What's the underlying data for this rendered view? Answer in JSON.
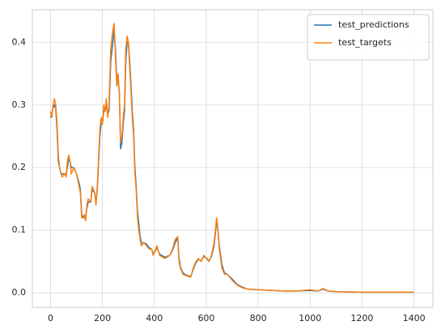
{
  "chart_data": {
    "type": "line",
    "x": [
      0,
      5,
      10,
      15,
      20,
      25,
      30,
      35,
      40,
      45,
      55,
      60,
      65,
      70,
      75,
      80,
      90,
      100,
      110,
      115,
      120,
      125,
      130,
      135,
      140,
      145,
      155,
      160,
      170,
      175,
      180,
      190,
      195,
      200,
      205,
      210,
      215,
      220,
      225,
      232,
      240,
      245,
      250,
      255,
      260,
      265,
      270,
      275,
      280,
      285,
      290,
      295,
      300,
      305,
      310,
      315,
      320,
      325,
      330,
      335,
      340,
      345,
      350,
      360,
      370,
      380,
      390,
      395,
      400,
      410,
      420,
      440,
      460,
      470,
      480,
      490,
      495,
      500,
      510,
      520,
      540,
      550,
      560,
      570,
      580,
      590,
      600,
      610,
      620,
      630,
      640,
      645,
      650,
      660,
      670,
      680,
      700,
      720,
      740,
      760,
      800,
      850,
      900,
      950,
      1000,
      1030,
      1050,
      1070,
      1100,
      1200,
      1300,
      1400
    ],
    "series": [
      {
        "name": "test_predictions",
        "color": "#1f77b4",
        "values": [
          0.28,
          0.285,
          0.295,
          0.3,
          0.295,
          0.26,
          0.21,
          0.2,
          0.19,
          0.19,
          0.19,
          0.19,
          0.2,
          0.215,
          0.21,
          0.2,
          0.2,
          0.19,
          0.175,
          0.165,
          0.125,
          0.12,
          0.12,
          0.12,
          0.135,
          0.145,
          0.145,
          0.165,
          0.16,
          0.145,
          0.165,
          0.25,
          0.27,
          0.27,
          0.29,
          0.29,
          0.3,
          0.285,
          0.29,
          0.37,
          0.4,
          0.42,
          0.39,
          0.34,
          0.34,
          0.32,
          0.23,
          0.24,
          0.27,
          0.29,
          0.37,
          0.4,
          0.4,
          0.37,
          0.33,
          0.29,
          0.26,
          0.2,
          0.17,
          0.13,
          0.11,
          0.09,
          0.08,
          0.08,
          0.078,
          0.072,
          0.07,
          0.063,
          0.064,
          0.073,
          0.062,
          0.057,
          0.06,
          0.068,
          0.08,
          0.088,
          0.055,
          0.042,
          0.032,
          0.029,
          0.026,
          0.038,
          0.048,
          0.054,
          0.051,
          0.058,
          0.056,
          0.051,
          0.058,
          0.075,
          0.115,
          0.1,
          0.075,
          0.045,
          0.032,
          0.03,
          0.022,
          0.013,
          0.009,
          0.006,
          0.005,
          0.004,
          0.003,
          0.003,
          0.004,
          0.003,
          0.006,
          0.003,
          0.002,
          0.001,
          0.001,
          0.001
        ]
      },
      {
        "name": "test_targets",
        "color": "#ff7f0e",
        "values": [
          0.29,
          0.28,
          0.3,
          0.31,
          0.3,
          0.27,
          0.22,
          0.2,
          0.19,
          0.185,
          0.19,
          0.185,
          0.21,
          0.22,
          0.21,
          0.19,
          0.2,
          0.19,
          0.17,
          0.16,
          0.12,
          0.12,
          0.125,
          0.115,
          0.14,
          0.15,
          0.145,
          0.17,
          0.16,
          0.14,
          0.17,
          0.26,
          0.28,
          0.27,
          0.3,
          0.29,
          0.31,
          0.28,
          0.3,
          0.39,
          0.42,
          0.43,
          0.38,
          0.33,
          0.35,
          0.32,
          0.24,
          0.25,
          0.28,
          0.3,
          0.39,
          0.41,
          0.4,
          0.36,
          0.32,
          0.28,
          0.25,
          0.19,
          0.165,
          0.12,
          0.1,
          0.085,
          0.075,
          0.08,
          0.075,
          0.07,
          0.07,
          0.06,
          0.065,
          0.075,
          0.06,
          0.055,
          0.06,
          0.07,
          0.085,
          0.09,
          0.05,
          0.04,
          0.03,
          0.028,
          0.025,
          0.04,
          0.05,
          0.055,
          0.05,
          0.06,
          0.055,
          0.05,
          0.06,
          0.08,
          0.12,
          0.1,
          0.07,
          0.04,
          0.03,
          0.03,
          0.02,
          0.012,
          0.008,
          0.006,
          0.005,
          0.004,
          0.003,
          0.003,
          0.005,
          0.003,
          0.007,
          0.003,
          0.002,
          0.001,
          0.001,
          0.001
        ]
      }
    ],
    "xlim": [
      -70,
      1473
    ],
    "xticks": [
      0,
      200,
      400,
      600,
      800,
      1000,
      1200,
      1400
    ],
    "ylim": [
      -0.023,
      0.452
    ],
    "yticks": [
      {
        "value": 0,
        "label": "0.0"
      },
      0.1,
      0.2,
      0.3,
      0.4
    ],
    "grid": true,
    "legend": "upper right"
  }
}
